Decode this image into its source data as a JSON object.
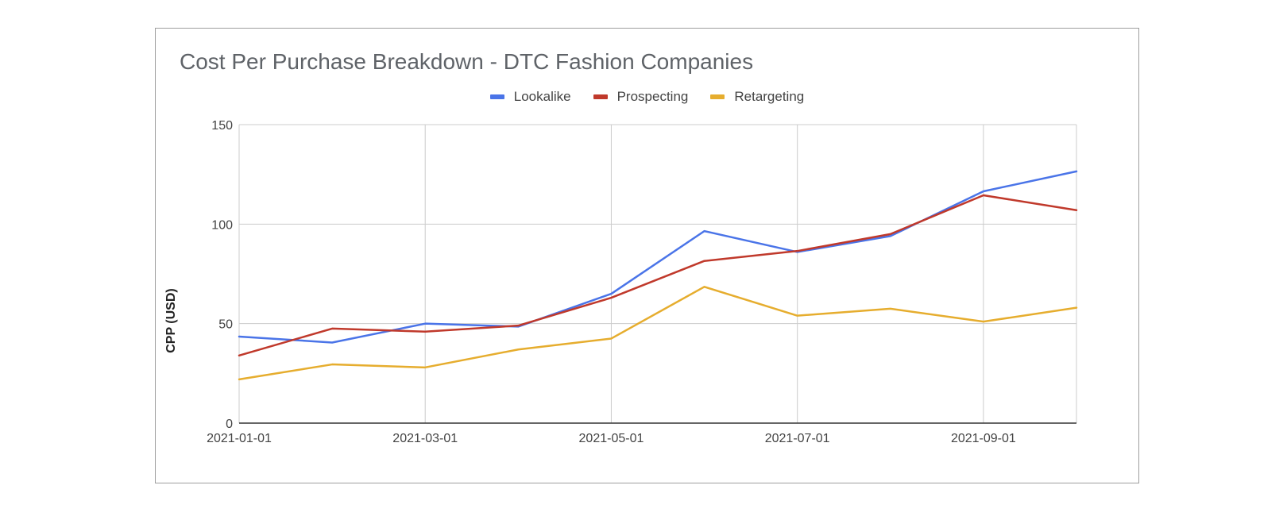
{
  "chart_data": {
    "type": "line",
    "title": "Cost Per Purchase Breakdown - DTC Fashion Companies",
    "xlabel": "",
    "ylabel": "CPP (USD)",
    "x": [
      "2021-01-01",
      "2021-02-01",
      "2021-03-01",
      "2021-04-01",
      "2021-05-01",
      "2021-06-01",
      "2021-07-01",
      "2021-08-01",
      "2021-09-01",
      "2021-10-01"
    ],
    "x_ticks": [
      "2021-01-01",
      "2021-03-01",
      "2021-05-01",
      "2021-07-01",
      "2021-09-01"
    ],
    "y_ticks": [
      0,
      50,
      100,
      150
    ],
    "ylim": [
      0,
      150
    ],
    "grid": true,
    "legend_position": "top",
    "series": [
      {
        "name": "Lookalike",
        "color": "#4a74e8",
        "values": [
          43.5,
          40.5,
          50,
          48.5,
          65,
          96.5,
          86,
          94,
          116.5,
          126.5
        ]
      },
      {
        "name": "Prospecting",
        "color": "#c0392b",
        "values": [
          34,
          47.5,
          46,
          49,
          63,
          81.5,
          86.5,
          95,
          114.5,
          107
        ]
      },
      {
        "name": "Retargeting",
        "color": "#e6ad2e",
        "values": [
          22,
          29.5,
          28,
          37,
          42.5,
          68.5,
          54,
          57.5,
          51,
          58
        ]
      }
    ]
  }
}
